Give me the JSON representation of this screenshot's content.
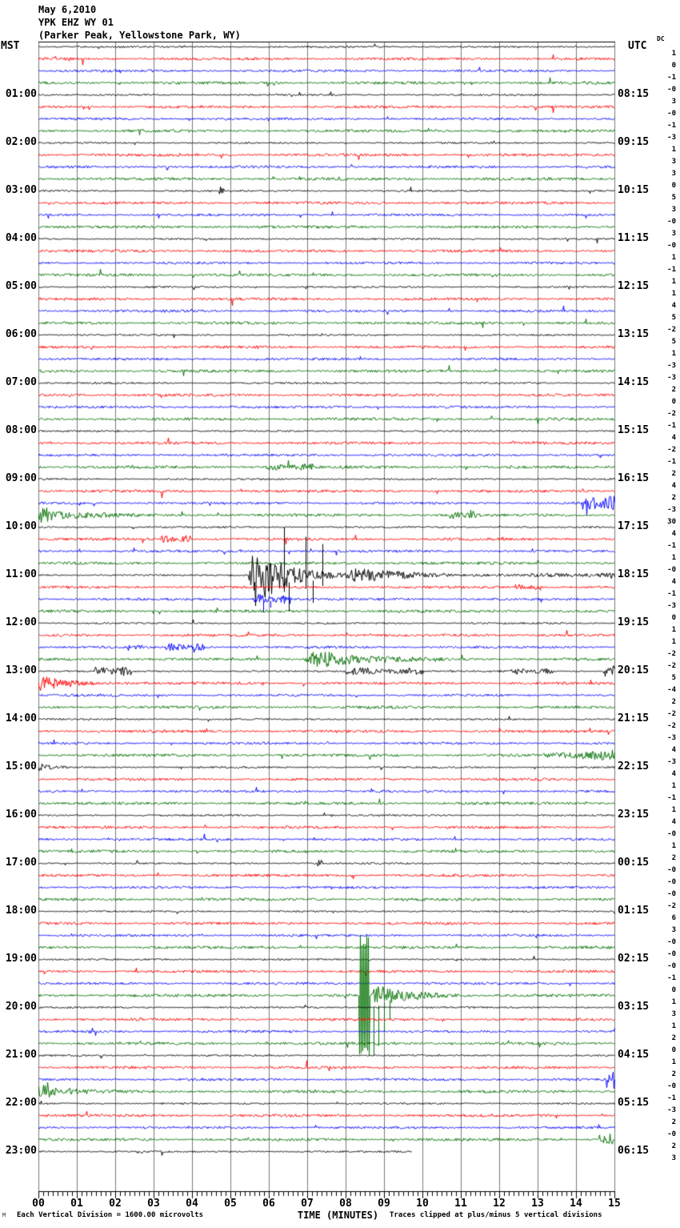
{
  "header": {
    "date": "May 6,2010",
    "station": "YPK EHZ WY 01",
    "location": "(Parker Peak, Yellowstone Park, WY)"
  },
  "axis": {
    "left_label": "MST",
    "right_label": "UTC",
    "dc_label": "DC",
    "x_title": "TIME (MINUTES)"
  },
  "footer": {
    "left": "Each Vertical Division = 1600.00 microvolts",
    "right": "Traces clipped at plus/minus 5 vertical divisions",
    "corner": "M"
  },
  "chart_data": {
    "type": "line",
    "subtype": "helicorder-seismogram",
    "title": "YPK EHZ WY 01 (Parker Peak, Yellowstone Park, WY) May 6,2010",
    "xlabel": "TIME (MINUTES)",
    "x_range_minutes": [
      0,
      15
    ],
    "x_tick_labels": [
      "00",
      "01",
      "02",
      "03",
      "04",
      "05",
      "06",
      "07",
      "08",
      "09",
      "10",
      "11",
      "12",
      "13",
      "14",
      "15"
    ],
    "minutes_per_row": 15,
    "row_count": 93,
    "traces_per_hour": 4,
    "clip_divisions": 5,
    "microvolts_per_division": 1600,
    "trace_colors": [
      "#000000",
      "#ff0000",
      "#0000ff",
      "#007000"
    ],
    "grid_color": "#7a7a7a",
    "left_times": [
      "01:00",
      "02:00",
      "03:00",
      "04:00",
      "05:00",
      "06:00",
      "07:00",
      "08:00",
      "09:00",
      "10:00",
      "11:00",
      "12:00",
      "13:00",
      "14:00",
      "15:00",
      "16:00",
      "17:00",
      "18:00",
      "19:00",
      "20:00",
      "21:00",
      "22:00",
      "23:00"
    ],
    "right_times": [
      "08:15",
      "09:15",
      "10:15",
      "11:15",
      "12:15",
      "13:15",
      "14:15",
      "15:15",
      "16:15",
      "17:15",
      "18:15",
      "19:15",
      "20:15",
      "21:15",
      "22:15",
      "23:15",
      "00:15",
      "01:15",
      "02:15",
      "03:15",
      "04:15",
      "05:15",
      "06:15"
    ],
    "dc_offsets": [
      "1",
      "0",
      "-1",
      "-0",
      "3",
      "-0",
      "-1",
      "-3",
      "1",
      "3",
      "3",
      "0",
      "5",
      "3",
      "-0",
      "3",
      "-0",
      "1",
      "-1",
      "1",
      "1",
      "4",
      "5",
      "-2",
      "5",
      "1",
      "-3",
      "-3",
      "2",
      "0",
      "-2",
      "-1",
      "4",
      "-2",
      "-1",
      "2",
      "4",
      "2",
      "-3",
      "30",
      "4",
      "-1",
      "1",
      "-0",
      "4",
      "-1",
      "-3",
      "0",
      "1",
      "1",
      "-2",
      "-2",
      "5",
      "-4",
      "2",
      "-2",
      "-2",
      "-3",
      "4",
      "-3",
      "4",
      "1",
      "-1",
      "1",
      "4",
      "-0",
      "1",
      "2",
      "-0",
      "-0",
      "-0",
      "-2",
      "6",
      "3",
      "-0",
      "-0",
      "-0",
      "-1",
      "0",
      "1",
      "3",
      "1",
      "2",
      "0",
      "1",
      "2",
      "-0",
      "-1",
      "-3",
      "2",
      "-0",
      "2",
      "3"
    ],
    "last_row_end_minute": 9.7,
    "events": [
      {
        "row": 12,
        "t0": 4.7,
        "t1": 4.85,
        "amp": 0.3,
        "shape": "flat"
      },
      {
        "row": 35,
        "t0": 5.9,
        "t1": 7.2,
        "amp": 0.18,
        "shape": "flat"
      },
      {
        "row": 38,
        "t0": 14.2,
        "t1": 15.0,
        "amp": 0.55,
        "shape": "flat"
      },
      {
        "row": 39,
        "t0": 0.0,
        "t1": 2.6,
        "amp": 0.7,
        "shape": "decay"
      },
      {
        "row": 39,
        "t0": 10.7,
        "t1": 11.4,
        "amp": 0.25,
        "shape": "flat"
      },
      {
        "row": 41,
        "t0": 3.2,
        "t1": 4.0,
        "amp": 0.28,
        "shape": "flat"
      },
      {
        "row": 44,
        "t0": 5.45,
        "t1": 7.9,
        "amp": 2.7,
        "shape": "decay",
        "spikes": [
          [
            6.4,
            4.0
          ],
          [
            6.52,
            -3.0
          ],
          [
            6.95,
            3.2
          ],
          [
            7.15,
            -2.3
          ],
          [
            7.4,
            2.6
          ]
        ]
      },
      {
        "row": 44,
        "t0": 7.9,
        "t1": 12.5,
        "amp": 0.55,
        "shape": "decay"
      },
      {
        "row": 44,
        "t0": 12.5,
        "t1": 15.0,
        "amp": 0.12,
        "shape": "flat"
      },
      {
        "row": 45,
        "t0": 12.4,
        "t1": 13.1,
        "amp": 0.22,
        "shape": "flat"
      },
      {
        "row": 46,
        "t0": 5.55,
        "t1": 6.6,
        "amp": 0.35,
        "shape": "flat",
        "spikes": [
          [
            5.85,
            -1.1
          ],
          [
            6.05,
            -0.7
          ]
        ]
      },
      {
        "row": 50,
        "t0": 2.3,
        "t1": 2.7,
        "amp": 0.2,
        "shape": "flat"
      },
      {
        "row": 50,
        "t0": 3.3,
        "t1": 4.3,
        "amp": 0.25,
        "shape": "flat"
      },
      {
        "row": 51,
        "t0": 6.9,
        "t1": 10.6,
        "amp": 0.75,
        "shape": "decay"
      },
      {
        "row": 52,
        "t0": 1.4,
        "t1": 2.4,
        "amp": 0.32,
        "shape": "flat"
      },
      {
        "row": 52,
        "t0": 8.0,
        "t1": 10.0,
        "amp": 0.26,
        "shape": "flat"
      },
      {
        "row": 52,
        "t0": 12.3,
        "t1": 13.4,
        "amp": 0.18,
        "shape": "flat"
      },
      {
        "row": 52,
        "t0": 14.7,
        "t1": 15.0,
        "amp": 0.5,
        "shape": "flat"
      },
      {
        "row": 53,
        "t0": 0.0,
        "t1": 2.3,
        "amp": 0.6,
        "shape": "decay"
      },
      {
        "row": 59,
        "t0": 13.1,
        "t1": 15.0,
        "amp": 0.4,
        "shape": "grow"
      },
      {
        "row": 60,
        "t0": 0.0,
        "t1": 1.0,
        "amp": 0.28,
        "shape": "decay"
      },
      {
        "row": 68,
        "t0": 7.25,
        "t1": 7.4,
        "amp": 0.35,
        "shape": "flat"
      },
      {
        "row": 79,
        "t0": 8.35,
        "t1": 8.62,
        "amp": 5.0,
        "shape": "spike"
      },
      {
        "row": 79,
        "t0": 8.62,
        "t1": 11.3,
        "amp": 0.85,
        "shape": "decay",
        "spikes": [
          [
            8.72,
            -5.0
          ],
          [
            8.85,
            -4.2
          ],
          [
            9.0,
            -3.0
          ],
          [
            9.15,
            -2.0
          ]
        ]
      },
      {
        "row": 86,
        "t0": 14.78,
        "t1": 15.0,
        "amp": 0.75,
        "shape": "flat"
      },
      {
        "row": 87,
        "t0": 0.0,
        "t1": 2.1,
        "amp": 0.6,
        "shape": "decay"
      },
      {
        "row": 91,
        "t0": 14.55,
        "t1": 14.95,
        "amp": 0.4,
        "shape": "flat"
      }
    ]
  }
}
